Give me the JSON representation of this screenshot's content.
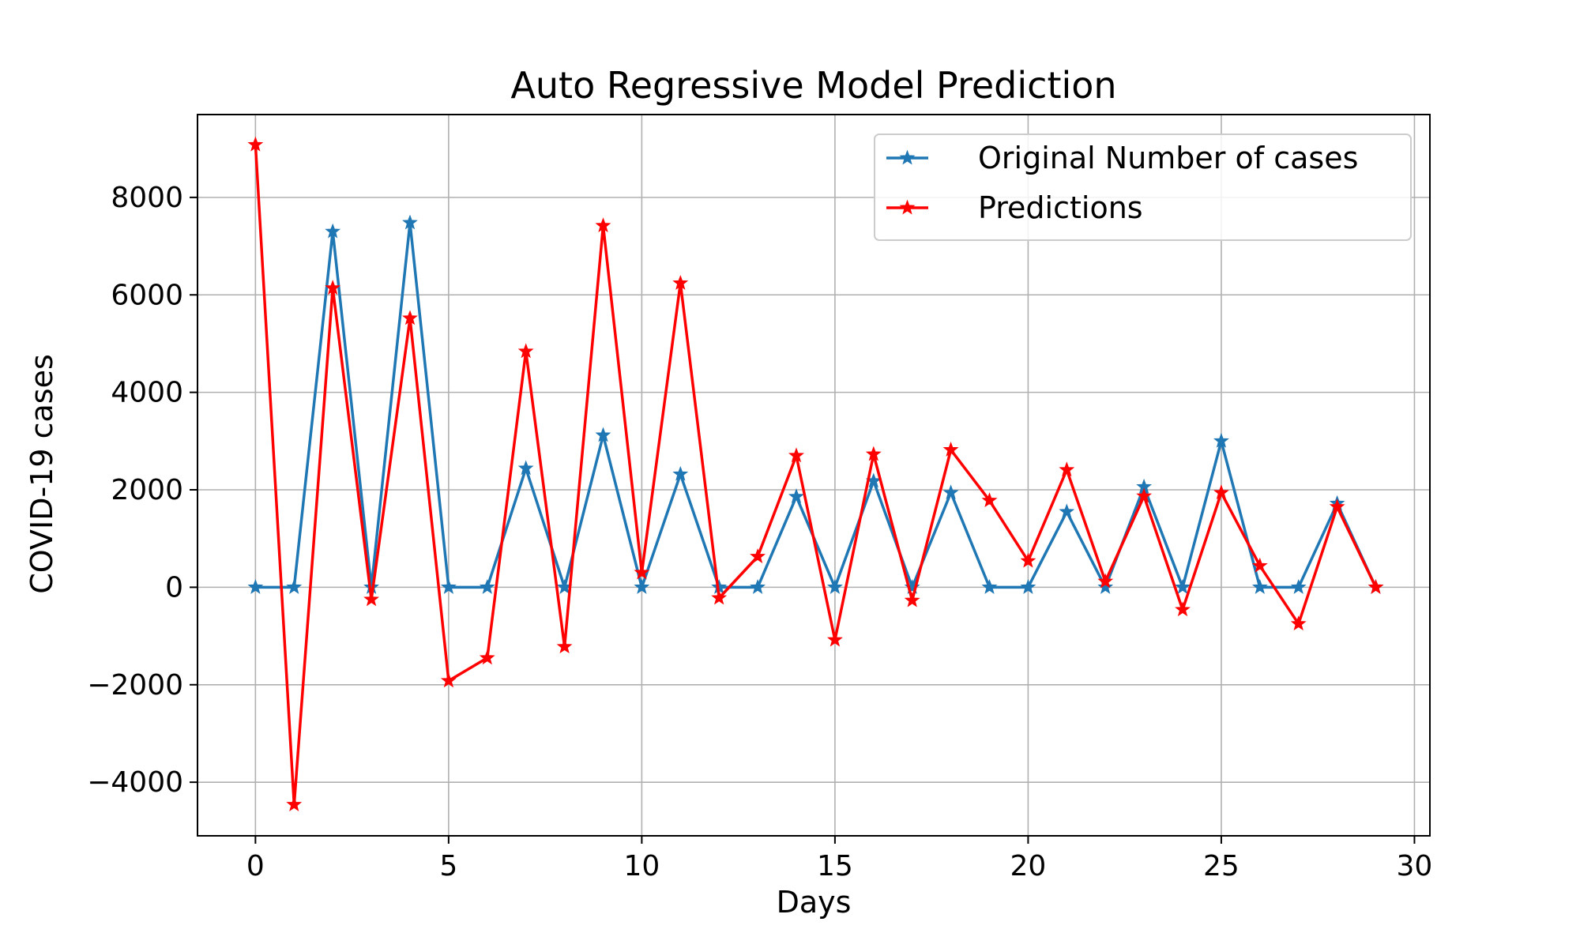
{
  "chart_data": {
    "type": "line",
    "title": "Auto Regressive Model Prediction",
    "xlabel": "Days",
    "ylabel": "COVID-19 cases",
    "xlim": [
      -1.5,
      30.4
    ],
    "ylim": [
      -5100,
      9700
    ],
    "xticks": [
      0,
      5,
      10,
      15,
      20,
      25,
      30
    ],
    "yticks": [
      -4000,
      -2000,
      0,
      2000,
      4000,
      6000,
      8000
    ],
    "xtick_labels": [
      "0",
      "5",
      "10",
      "15",
      "20",
      "25",
      "30"
    ],
    "ytick_labels": [
      "−4000",
      "−2000",
      "0",
      "2000",
      "4000",
      "6000",
      "8000"
    ],
    "grid": true,
    "legend_position": "upper right",
    "x": [
      0,
      1,
      2,
      3,
      4,
      5,
      6,
      7,
      8,
      9,
      10,
      11,
      12,
      13,
      14,
      15,
      16,
      17,
      18,
      19,
      20,
      21,
      22,
      23,
      24,
      25,
      26,
      27,
      28,
      29
    ],
    "series": [
      {
        "name": "Original Number of cases",
        "color": "#1f77b4",
        "marker": "star",
        "values": [
          0,
          0,
          7300,
          0,
          7480,
          0,
          0,
          2440,
          0,
          3120,
          0,
          2320,
          0,
          0,
          1860,
          0,
          2180,
          0,
          1940,
          0,
          0,
          1550,
          0,
          2060,
          0,
          3000,
          0,
          0,
          1720,
          0
        ]
      },
      {
        "name": "Predictions",
        "color": "#ff0000",
        "marker": "star",
        "values": [
          9080,
          -4460,
          6140,
          -250,
          5520,
          -1920,
          -1450,
          4840,
          -1220,
          7420,
          300,
          6240,
          -220,
          630,
          2700,
          -1080,
          2730,
          -270,
          2820,
          1780,
          540,
          2410,
          120,
          1870,
          -460,
          1940,
          440,
          -750,
          1650,
          0
        ]
      }
    ]
  }
}
